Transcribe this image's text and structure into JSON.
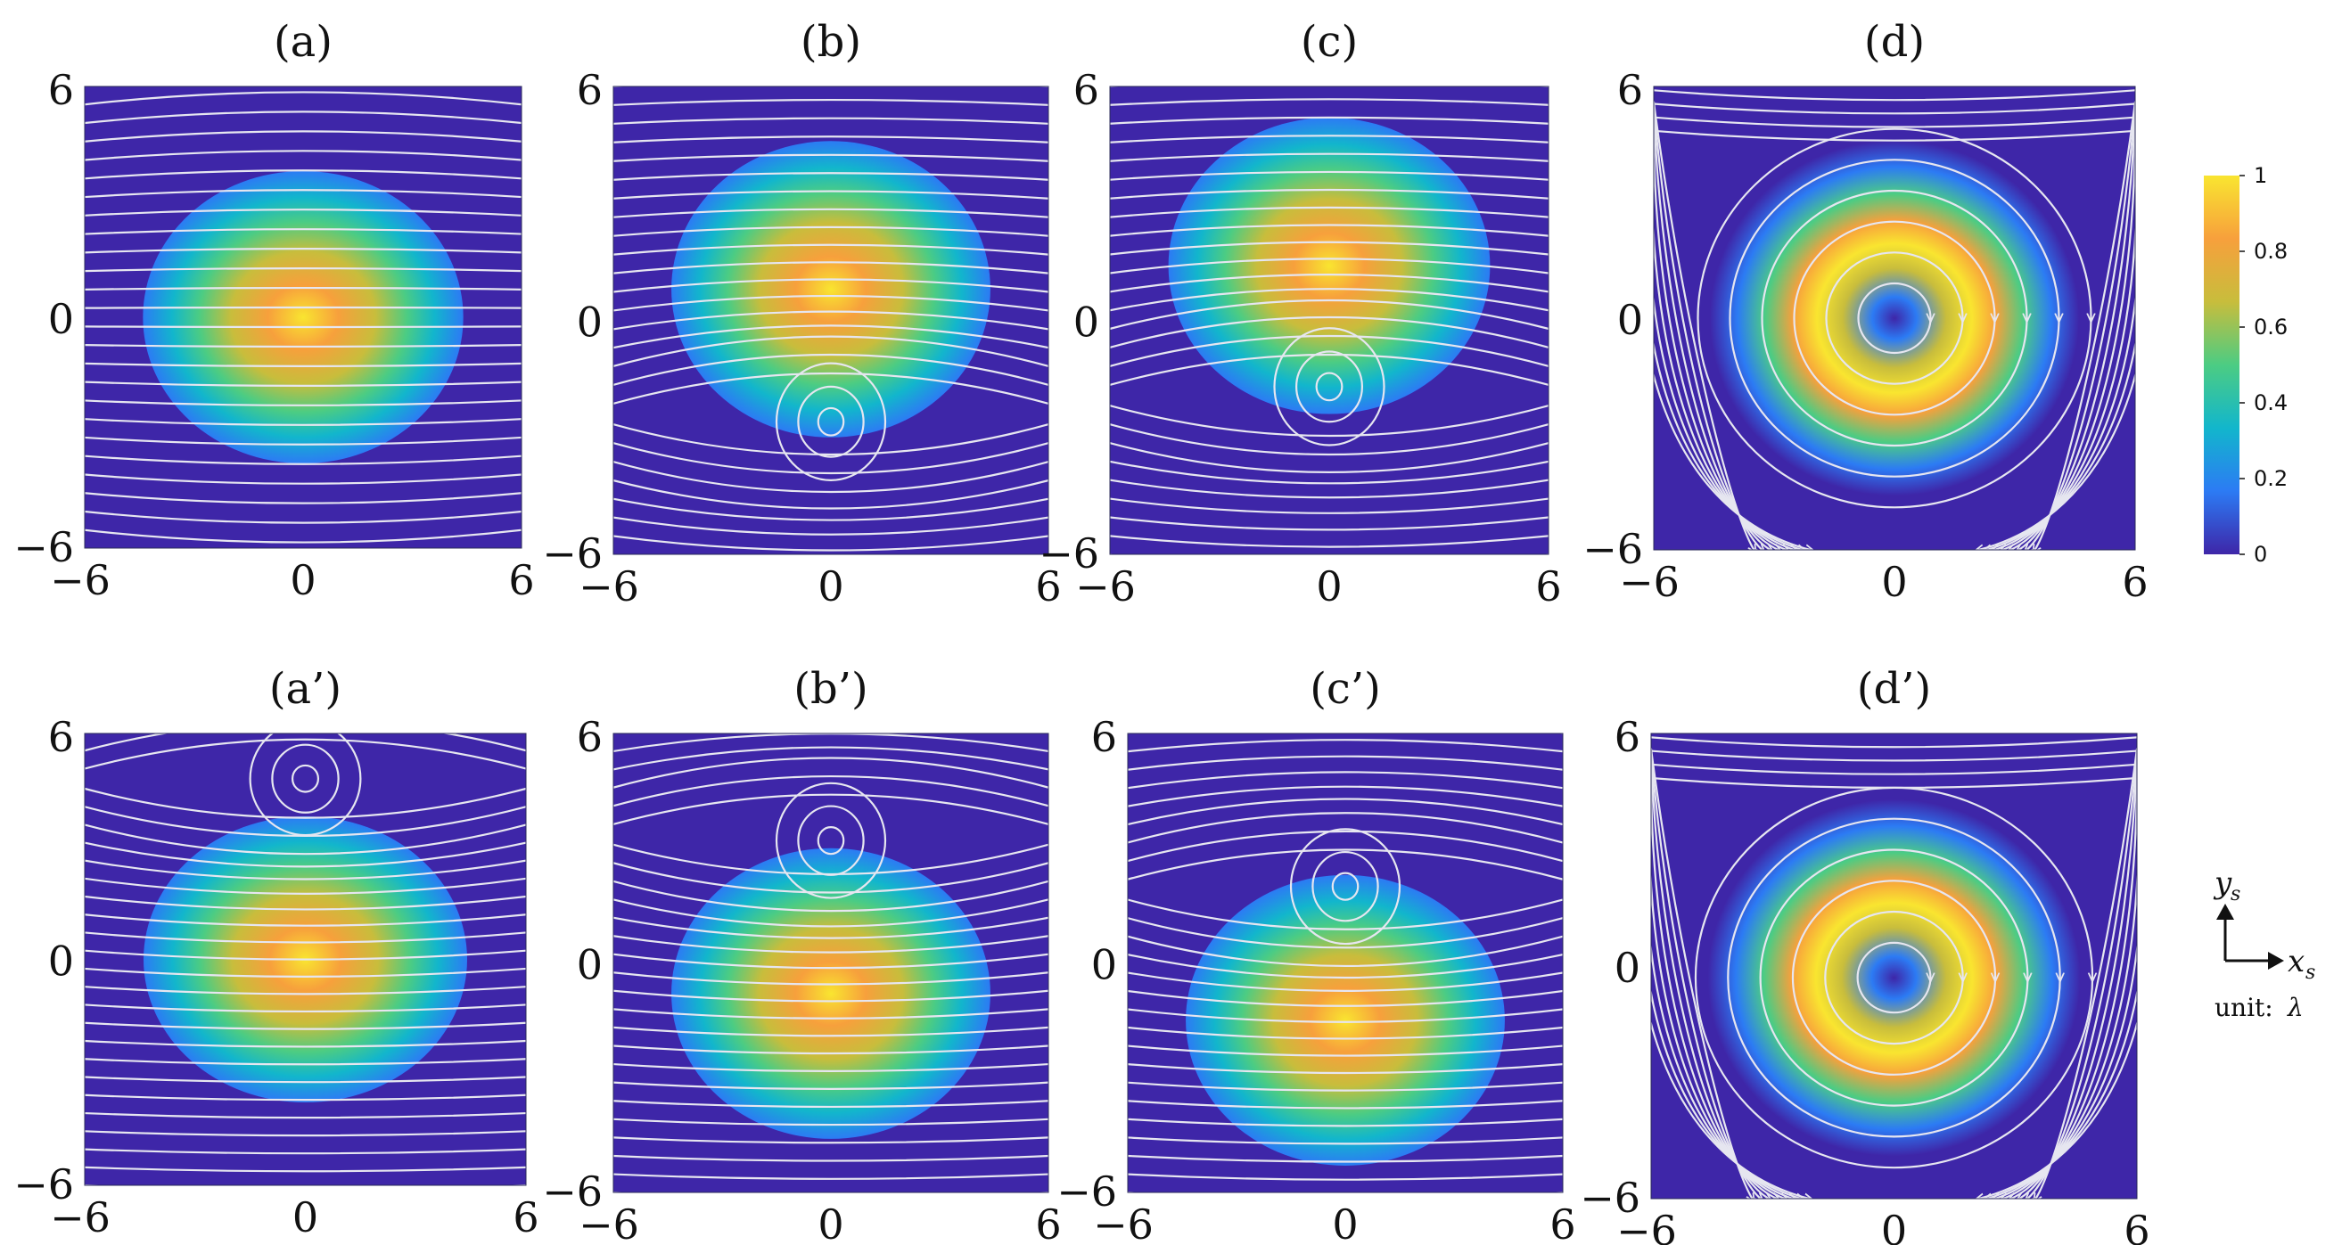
{
  "figure": {
    "colormap": [
      "#3e26a8",
      "#2c7bf4",
      "#12b6cc",
      "#4ccc83",
      "#c8bd3c",
      "#f7a03c",
      "#f9e530"
    ],
    "streamline_color": "#e6e6f0",
    "panels": [
      {
        "label": "(a)",
        "field": "gauss",
        "dy": 0.0,
        "vortex": null
      },
      {
        "label": "(b)",
        "field": "gauss",
        "dy": 0.8,
        "vortex": -2.6
      },
      {
        "label": "(c)",
        "field": "gauss",
        "dy": 1.4,
        "vortex": -1.7
      },
      {
        "label": "(d)",
        "field": "ring",
        "dy": 0.0,
        "vortex": 0.0
      },
      {
        "label": "(a’)",
        "field": "gauss",
        "dy": 0.0,
        "vortex": 4.8
      },
      {
        "label": "(b’)",
        "field": "gauss",
        "dy": -0.8,
        "vortex": 3.2
      },
      {
        "label": "(c’)",
        "field": "gauss",
        "dy": -1.5,
        "vortex": 2.0
      },
      {
        "label": "(d’)",
        "field": "ring",
        "dy": -0.3,
        "vortex": 0.5
      }
    ],
    "x_ticks": [
      "−6",
      "0",
      "6"
    ],
    "y_ticks": [
      "6",
      "0",
      "−6"
    ],
    "colorbar": {
      "ticks": [
        "1",
        "0.8",
        "0.6",
        "0.4",
        "0.2",
        "0"
      ]
    },
    "axes_key": {
      "y_symbol": "y",
      "y_sub": "s",
      "x_symbol": "x",
      "x_sub": "s",
      "unit_label": "unit:",
      "unit_symbol": "λ"
    }
  }
}
